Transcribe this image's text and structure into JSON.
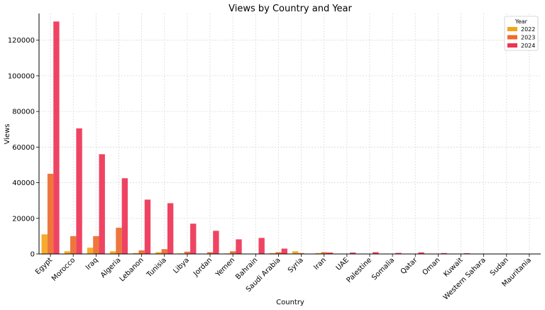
{
  "chart_data": {
    "type": "bar",
    "title": "Views by Country and Year",
    "xlabel": "Country",
    "ylabel": "Views",
    "ylim": [
      0,
      135000
    ],
    "yticks": [
      0,
      20000,
      40000,
      60000,
      80000,
      100000,
      120000
    ],
    "grid": true,
    "legend_title": "Year",
    "legend_position": "top-right",
    "categories": [
      "Egypt",
      "Morocco",
      "Iraq",
      "Algeria",
      "Lebanon",
      "Tunisia",
      "Libya",
      "Jordan",
      "Yemen",
      "Bahrain",
      "Saudi Arabia",
      "Syria",
      "Iran",
      "UAE",
      "Palestine",
      "Somalia",
      "Qatar",
      "Oman",
      "Kuwait",
      "Western Sahara",
      "Sudan",
      "Mauritania"
    ],
    "series": [
      {
        "name": "2022",
        "color": "#F5A418",
        "values": [
          11000,
          1500,
          3500,
          1500,
          500,
          1000,
          300,
          200,
          300,
          0,
          500,
          1500,
          500,
          200,
          0,
          100,
          0,
          0,
          0,
          0,
          0,
          0
        ]
      },
      {
        "name": "2023",
        "color": "#EE6A2B",
        "values": [
          45000,
          10000,
          10000,
          14700,
          2000,
          2700,
          1300,
          1000,
          1500,
          0,
          1000,
          500,
          1000,
          100,
          0,
          100,
          0,
          0,
          0,
          0,
          0,
          0
        ]
      },
      {
        "name": "2024",
        "color": "#EE3355",
        "values": [
          130500,
          70500,
          56000,
          42500,
          30500,
          28500,
          17000,
          13000,
          8200,
          9000,
          3000,
          0,
          800,
          800,
          1000,
          600,
          900,
          500,
          400,
          0,
          0,
          0
        ]
      }
    ]
  }
}
